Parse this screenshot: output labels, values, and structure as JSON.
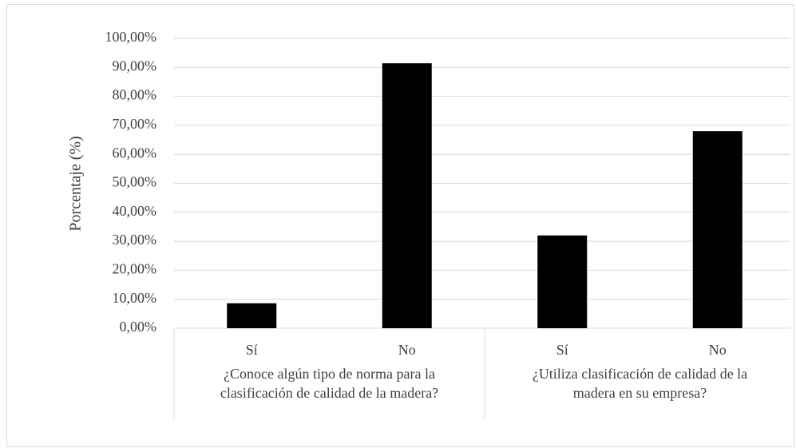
{
  "chart_data": {
    "type": "bar",
    "y_label": "Porcentaje (%)",
    "categories": [
      "Sí",
      "No",
      "Sí",
      "No"
    ],
    "groups": [
      {
        "label": [
          "¿Conoce algún tipo de norma para la",
          "clasificación de calidad de la madera?"
        ]
      },
      {
        "label": [
          "¿Utiliza clasificación de calidad de la",
          "madera en su empresa?"
        ]
      }
    ],
    "values": [
      8.6,
      91.4,
      32,
      68
    ],
    "color": "#000000",
    "ylim": [
      0,
      100
    ],
    "yticks": [
      {
        "value": 0,
        "label": "0,00%"
      },
      {
        "value": 10,
        "label": "10,00%"
      },
      {
        "value": 20,
        "label": "20,00%"
      },
      {
        "value": 30,
        "label": "30,00%"
      },
      {
        "value": 40,
        "label": "40,00%"
      },
      {
        "value": 50,
        "label": "50,00%"
      },
      {
        "value": 60,
        "label": "60,00%"
      },
      {
        "value": 70,
        "label": "70,00%"
      },
      {
        "value": 80,
        "label": "80,00%"
      },
      {
        "value": 90,
        "label": "90,00%"
      },
      {
        "value": 100,
        "label": "100,00%"
      }
    ],
    "grid": true
  }
}
